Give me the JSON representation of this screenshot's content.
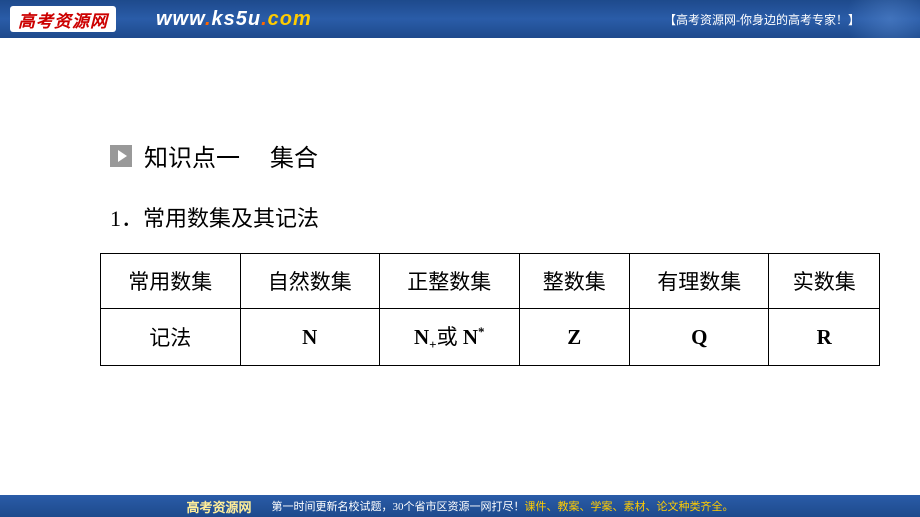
{
  "banner": {
    "logo_text": "高考资源网",
    "url_prefix": "www",
    "url_domain": "ks5u",
    "url_suffix": "com",
    "tagline": "【高考资源网-你身边的高考专家！】"
  },
  "content": {
    "section_label": "知识点一",
    "section_keyword": "集合",
    "subsection": "1．常用数集及其记法"
  },
  "table": {
    "header_row": [
      "常用数集",
      "自然数集",
      "正整数集",
      "整数集",
      "有理数集",
      "实数集"
    ],
    "data_row_label": "记法",
    "notations": {
      "natural": "N",
      "positive_int_1": "N",
      "positive_int_sub": "+",
      "positive_int_or": "或",
      "positive_int_2": "N",
      "positive_int_sup": "*",
      "integer": "Z",
      "rational": "Q",
      "real": "R"
    }
  },
  "footer": {
    "logo": "高考资源网",
    "text_1": "第一时间更新名校试题，30个省市区资源一网打尽！",
    "text_2": "课件、教案、学案、素材、论文种类齐全。"
  },
  "colors": {
    "banner_bg": "#1e4a8c",
    "logo_bg": "#ffffff",
    "logo_text": "#cc0000",
    "url_white": "#ffffff",
    "url_orange": "#ff6600",
    "url_yellow": "#ffcc00",
    "text": "#000000",
    "bullet_bg": "#999999",
    "border": "#000000"
  }
}
